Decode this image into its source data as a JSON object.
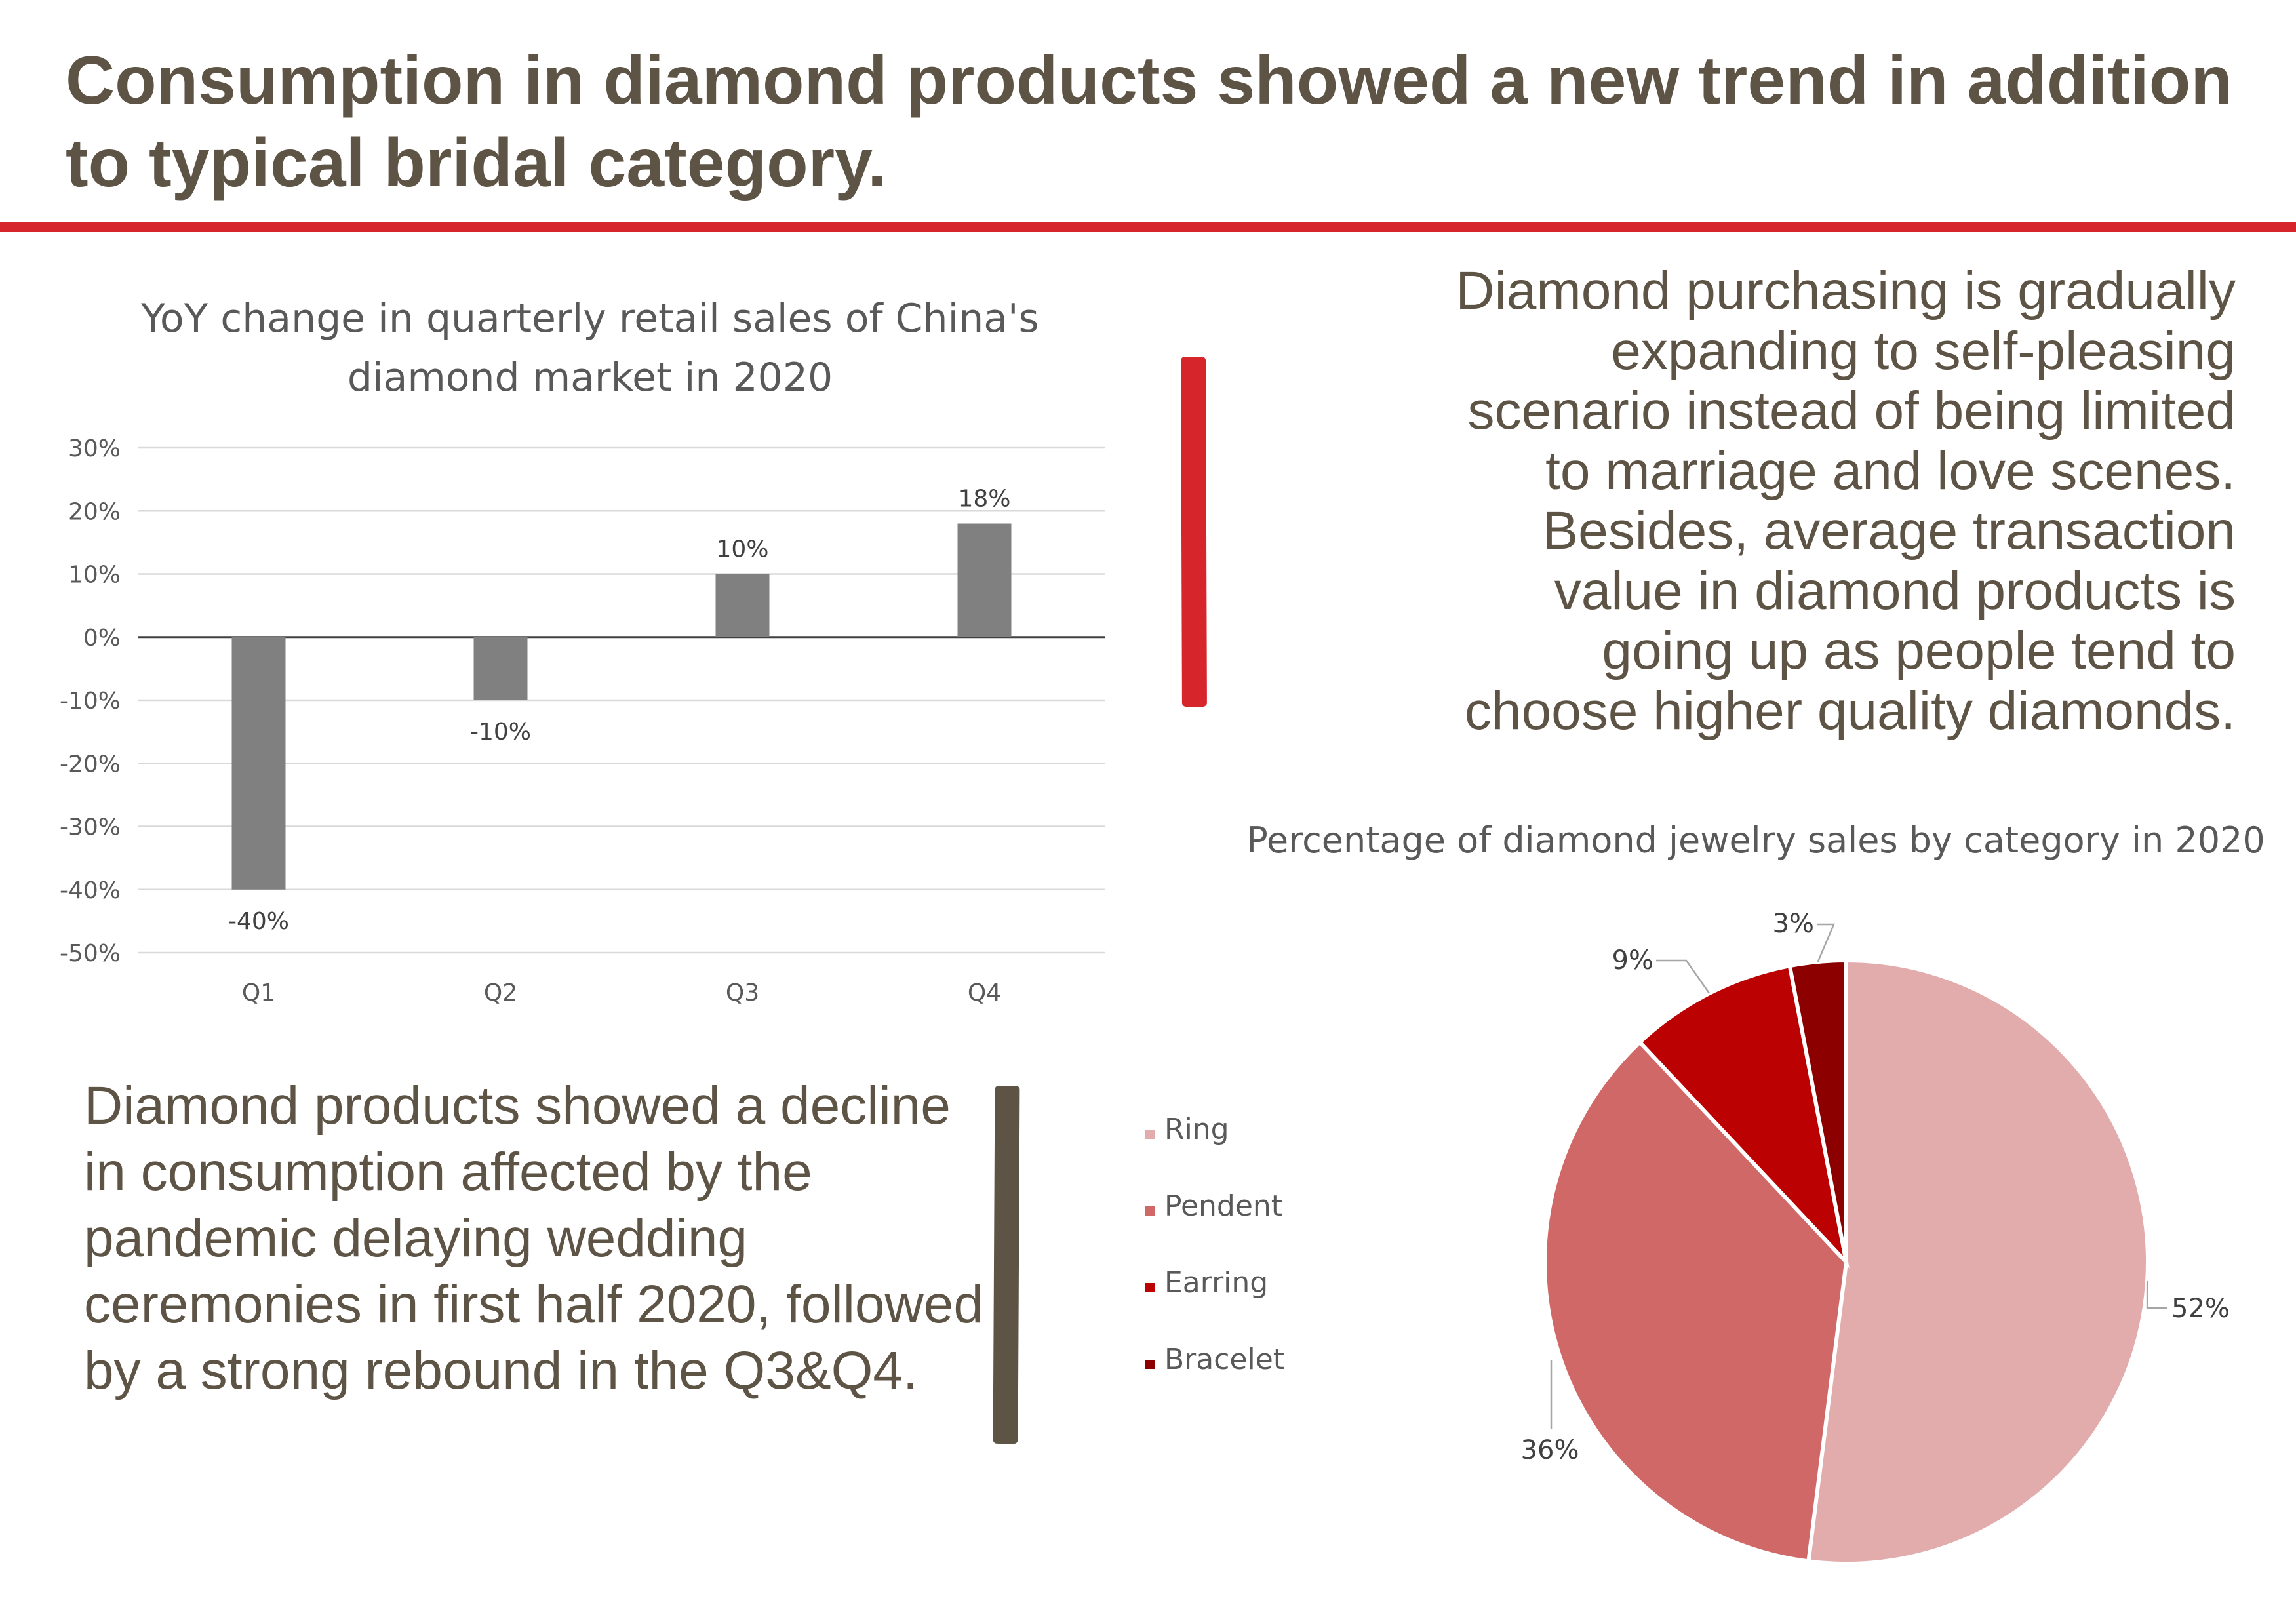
{
  "slide": {
    "title": "Consumption in diamond products showed a new trend in addition to typical bridal category.",
    "callout_right": "Diamond purchasing is gradually expanding to self-pleasing scenario instead of being limited to marriage and love scenes. Besides, average transaction value in diamond products is going up as people tend to choose higher quality diamonds.",
    "callout_left": "Diamond products showed a decline in consumption affected by the pandemic delaying wedding ceremonies in first half 2020, followed by a strong rebound in the Q3&Q4."
  },
  "colors": {
    "heading": "#5e5446",
    "accent_red": "#d6262c",
    "bar": "#808080",
    "gridline": "#d9d9d9",
    "axis": "#404040"
  },
  "chart_data": [
    {
      "type": "bar",
      "title_lines": [
        "YoY change in quarterly retail sales of China's",
        "diamond market in 2020"
      ],
      "categories": [
        "Q1",
        "Q2",
        "Q3",
        "Q4"
      ],
      "values": [
        -40,
        -10,
        10,
        18
      ],
      "data_labels": [
        "-40%",
        "-10%",
        "10%",
        "18%"
      ],
      "ylim": [
        -50,
        30
      ],
      "yticks": [
        30,
        20,
        10,
        0,
        -10,
        -20,
        -30,
        -40,
        -50
      ],
      "ytick_labels": [
        "30%",
        "20%",
        "10%",
        "0%",
        "-10%",
        "-20%",
        "-30%",
        "-40%",
        "-50%"
      ],
      "xlabel": "",
      "ylabel": "",
      "grid": true,
      "legend": "none"
    },
    {
      "type": "pie",
      "title": "Percentage of diamond jewelry sales by category in 2020",
      "categories": [
        "Ring",
        "Pendent",
        "Earring",
        "Bracelet"
      ],
      "values": [
        52,
        36,
        9,
        3
      ],
      "data_labels": [
        "52%",
        "36%",
        "9%",
        "3%"
      ],
      "colors": [
        "#e2acac",
        "#d06868",
        "#bb0101",
        "#8c0000"
      ],
      "start_angle_deg": 0,
      "direction": "clockwise",
      "legend": "left"
    }
  ]
}
